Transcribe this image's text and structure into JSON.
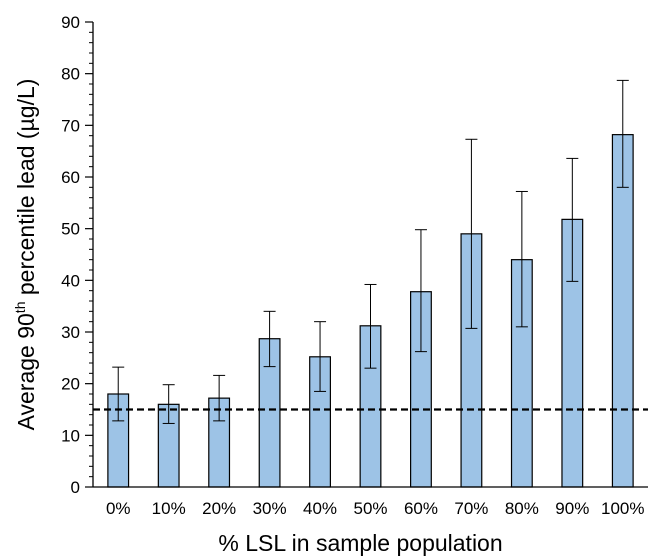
{
  "chart_data": {
    "type": "bar",
    "title": "",
    "xlabel": "% LSL in sample population",
    "ylabel": {
      "prefix": "Average 90",
      "superscript": "th",
      "suffix": " percentile lead (µg/L)"
    },
    "ylim": [
      0,
      90
    ],
    "yticks": [
      0,
      10,
      20,
      30,
      40,
      50,
      60,
      70,
      80,
      90
    ],
    "minor_tick_step": 2,
    "grid": false,
    "legend": "none",
    "categories": [
      "0%",
      "10%",
      "20%",
      "30%",
      "40%",
      "50%",
      "60%",
      "70%",
      "80%",
      "90%",
      "100%"
    ],
    "values": [
      18,
      16,
      17.2,
      28.7,
      25.2,
      31.2,
      37.8,
      49,
      44,
      51.8,
      68.2
    ],
    "error_low": [
      12.8,
      12.3,
      12.8,
      23.3,
      18.5,
      23,
      26.2,
      30.7,
      31,
      39.8,
      58
    ],
    "error_high": [
      23.2,
      19.8,
      21.6,
      34,
      32,
      39.2,
      49.8,
      67.3,
      57.2,
      63.6,
      78.7
    ],
    "reference_line": {
      "value": 15,
      "style": "dashed"
    },
    "colors": {
      "bar_fill": "#9dc3e6",
      "bar_stroke": "#000000",
      "error_bar": "#000000",
      "reference_line": "#000000"
    }
  }
}
